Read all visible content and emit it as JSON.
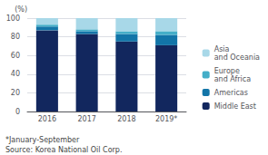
{
  "chart_data": {
    "type": "bar",
    "stacked": true,
    "ylabel": "(%)",
    "categories": [
      "2016",
      "2017",
      "2018",
      "2019*"
    ],
    "series": [
      {
        "name": "Middle East",
        "color": "#12275e",
        "values": [
          87,
          83,
          75,
          71
        ]
      },
      {
        "name": "Americas",
        "color": "#1275a8",
        "values": [
          4,
          3,
          8,
          11
        ]
      },
      {
        "name": "Europe\nand Africa",
        "color": "#44aec8",
        "values": [
          2,
          2,
          3,
          4
        ]
      },
      {
        "name": "Asia\nand Oceania",
        "color": "#a8d8e8",
        "values": [
          7,
          12,
          14,
          14
        ]
      }
    ],
    "ylim": [
      0,
      100
    ],
    "yticks": [
      0,
      20,
      40,
      60,
      80,
      100
    ],
    "grid": true,
    "legend": "right",
    "annotations": [
      "*January-September",
      "Source: Korea National Oil Corp."
    ]
  }
}
